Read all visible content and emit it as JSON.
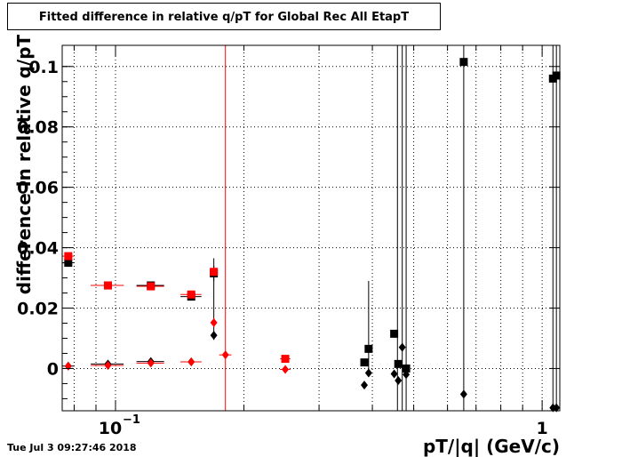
{
  "chart_data": {
    "type": "scatter",
    "title": "Fitted difference in relative q/pT for Global Rec All EtapT",
    "xlabel": "pT/|q| (GeV/c)",
    "ylabel": "difference in relative q/pT",
    "x_scale": "log",
    "xlim": [
      0.075,
      1.1
    ],
    "ylim": [
      -0.014,
      0.107
    ],
    "grid": true,
    "x_ticks": [
      {
        "value": 0.1,
        "label": "10",
        "exponent": "−1"
      },
      {
        "value": 1.0,
        "label": "1",
        "exponent": ""
      }
    ],
    "y_ticks": [
      {
        "value": 0,
        "label": "0"
      },
      {
        "value": 0.02,
        "label": "0.02"
      },
      {
        "value": 0.04,
        "label": "0.04"
      },
      {
        "value": 0.06,
        "label": "0.06"
      },
      {
        "value": 0.08,
        "label": "0.08"
      },
      {
        "value": 0.1,
        "label": "0.1"
      }
    ],
    "series": [
      {
        "marker": "square",
        "color": "#000000",
        "points": [
          {
            "x": 0.0775,
            "y": 0.035,
            "xerr": [
              0.0025,
              0.0025
            ],
            "yerr": [
              0.001,
              0.001
            ]
          },
          {
            "x": 0.096,
            "y": 0.0275,
            "xerr": [
              0.0085,
              0.0085
            ],
            "yerr": [
              0.0004,
              0.0004
            ]
          },
          {
            "x": 0.121,
            "y": 0.0275,
            "xerr": [
              0.009,
              0.009
            ],
            "yerr": [
              0.0004,
              0.0004
            ]
          },
          {
            "x": 0.1505,
            "y": 0.0238,
            "xerr": [
              0.0085,
              0.0085
            ],
            "yerr": [
              0.0008,
              0.0008
            ]
          },
          {
            "x": 0.17,
            "y": 0.0315,
            "xerr": [
              0.0,
              0.0
            ],
            "yerr": [
              0.0025,
              0.0025
            ]
          },
          {
            "x": 0.383,
            "y": 0.002,
            "xerr": [
              0.0,
              0.0
            ],
            "yerr": [
              0.0,
              0.0
            ]
          },
          {
            "x": 0.392,
            "y": 0.0065,
            "xerr": [
              0.0,
              0.0
            ],
            "yerr": [
              0.0,
              0.0
            ]
          },
          {
            "x": 0.45,
            "y": 0.0115,
            "xerr": [
              0.0,
              0.0
            ],
            "yerr": [
              0.0,
              0.0
            ]
          },
          {
            "x": 0.46,
            "y": 0.0015,
            "xerr": [
              0.0,
              0.0
            ],
            "yerr": [
              0.0,
              0.0
            ]
          },
          {
            "x": 0.48,
            "y": 0.0,
            "xerr": [
              0.0,
              0.0
            ],
            "yerr": [
              0.0,
              0.0
            ]
          },
          {
            "x": 0.655,
            "y": 0.1015,
            "xerr": [
              0.0,
              0.0
            ],
            "yerr": [
              0.0,
              0.0
            ]
          },
          {
            "x": 1.06,
            "y": 0.096,
            "xerr": [
              0.0,
              0.0
            ],
            "yerr": [
              0.0,
              0.0
            ]
          },
          {
            "x": 1.08,
            "y": 0.097,
            "xerr": [
              0.0,
              0.0
            ],
            "yerr": [
              0.0,
              0.0
            ]
          }
        ]
      },
      {
        "marker": "square",
        "color": "#ff0000",
        "points": [
          {
            "x": 0.0775,
            "y": 0.0372,
            "xerr": [
              0.0025,
              0.0025
            ],
            "yerr": [
              0.001,
              0.001
            ]
          },
          {
            "x": 0.096,
            "y": 0.0275,
            "xerr": [
              0.0085,
              0.0085
            ],
            "yerr": [
              0.0004,
              0.0004
            ]
          },
          {
            "x": 0.121,
            "y": 0.0272,
            "xerr": [
              0.009,
              0.009
            ],
            "yerr": [
              0.0004,
              0.0004
            ]
          },
          {
            "x": 0.1505,
            "y": 0.0245,
            "xerr": [
              0.0085,
              0.0085
            ],
            "yerr": [
              0.0008,
              0.0008
            ]
          },
          {
            "x": 0.17,
            "y": 0.032,
            "xerr": [
              0.0,
              0.0
            ],
            "yerr": [
              0.0015,
              0.0015
            ]
          },
          {
            "x": 0.25,
            "y": 0.0032,
            "xerr": [
              0.007,
              0.007
            ],
            "yerr": [
              0.0,
              0.0
            ]
          }
        ]
      },
      {
        "marker": "diamond",
        "color": "#000000",
        "points": [
          {
            "x": 0.0775,
            "y": 0.0008,
            "xerr": [
              0.0025,
              0.0025
            ],
            "yerr": [
              0.0,
              0.0
            ]
          },
          {
            "x": 0.096,
            "y": 0.0015,
            "xerr": [
              0.0085,
              0.0085
            ],
            "yerr": [
              0.0,
              0.0
            ]
          },
          {
            "x": 0.121,
            "y": 0.0023,
            "xerr": [
              0.009,
              0.009
            ],
            "yerr": [
              0.0,
              0.0
            ]
          },
          {
            "x": 0.1505,
            "y": 0.0022,
            "xerr": [
              0.0085,
              0.0085
            ],
            "yerr": [
              0.0,
              0.0
            ]
          },
          {
            "x": 0.17,
            "y": 0.011,
            "xerr": [
              0.0,
              0.0
            ],
            "yerr": [
              0.0015,
              0.0015
            ]
          },
          {
            "x": 0.383,
            "y": -0.0055,
            "xerr": [
              0.0,
              0.0
            ],
            "yerr": [
              0.0,
              0.0
            ]
          },
          {
            "x": 0.392,
            "y": -0.0015,
            "xerr": [
              0.0,
              0.0
            ],
            "yerr": [
              0.0,
              0.0
            ]
          },
          {
            "x": 0.45,
            "y": -0.0018,
            "xerr": [
              0.0,
              0.0
            ],
            "yerr": [
              0.0,
              0.0
            ]
          },
          {
            "x": 0.46,
            "y": -0.004,
            "xerr": [
              0.0,
              0.0
            ],
            "yerr": [
              0.0,
              0.0
            ]
          },
          {
            "x": 0.47,
            "y": 0.007,
            "xerr": [
              0.0,
              0.0
            ],
            "yerr": [
              0.0,
              0.0
            ]
          },
          {
            "x": 0.48,
            "y": -0.002,
            "xerr": [
              0.0,
              0.0
            ],
            "yerr": [
              0.0,
              0.0
            ]
          },
          {
            "x": 0.655,
            "y": -0.0085,
            "xerr": [
              0.0,
              0.0
            ],
            "yerr": [
              0.0,
              0.0
            ]
          },
          {
            "x": 1.06,
            "y": -0.013,
            "xerr": [
              0.0,
              0.0
            ],
            "yerr": [
              0.0,
              0.0
            ]
          },
          {
            "x": 1.08,
            "y": -0.013,
            "xerr": [
              0.0,
              0.0
            ],
            "yerr": [
              0.0,
              0.0
            ]
          }
        ]
      },
      {
        "marker": "diamond",
        "color": "#ff0000",
        "points": [
          {
            "x": 0.0775,
            "y": 0.0008,
            "xerr": [
              0.0,
              0.0
            ],
            "yerr": [
              0.0,
              0.0
            ]
          },
          {
            "x": 0.096,
            "y": 0.001,
            "xerr": [
              0.0085,
              0.0085
            ],
            "yerr": [
              0.0,
              0.0
            ]
          },
          {
            "x": 0.121,
            "y": 0.0018,
            "xerr": [
              0.009,
              0.009
            ],
            "yerr": [
              0.0,
              0.0
            ]
          },
          {
            "x": 0.1505,
            "y": 0.0022,
            "xerr": [
              0.0085,
              0.0085
            ],
            "yerr": [
              0.0,
              0.0
            ]
          },
          {
            "x": 0.17,
            "y": 0.0152,
            "xerr": [
              0.0,
              0.0
            ],
            "yerr": [
              0.0015,
              0.0015
            ]
          },
          {
            "x": 0.181,
            "y": 0.0045,
            "xerr": [
              0.006,
              0.006
            ],
            "yerr": [
              0.0,
              0.0
            ]
          },
          {
            "x": 0.25,
            "y": -0.0003,
            "xerr": [
              0.007,
              0.007
            ],
            "yerr": [
              0.0,
              0.0
            ]
          }
        ]
      }
    ],
    "vertical_lines": [
      {
        "x": 0.181,
        "color": "#ff0000"
      },
      {
        "x": 0.458,
        "color": "#000000"
      },
      {
        "x": 0.47,
        "color": "#000000"
      },
      {
        "x": 0.48,
        "color": "#000000"
      },
      {
        "x": 0.655,
        "color": "#000000"
      },
      {
        "x": 1.06,
        "color": "#000000"
      },
      {
        "x": 1.08,
        "color": "#000000"
      }
    ],
    "partial_errors": [
      {
        "x": 0.392,
        "y_from": -0.0015,
        "y_to": 0.029,
        "color": "#000000"
      },
      {
        "x": 0.17,
        "y_from": 0.0095,
        "y_to": 0.0365,
        "color": "#000000"
      }
    ]
  },
  "footer": {
    "timestamp": "Tue Jul  3 09:27:46 2018"
  }
}
